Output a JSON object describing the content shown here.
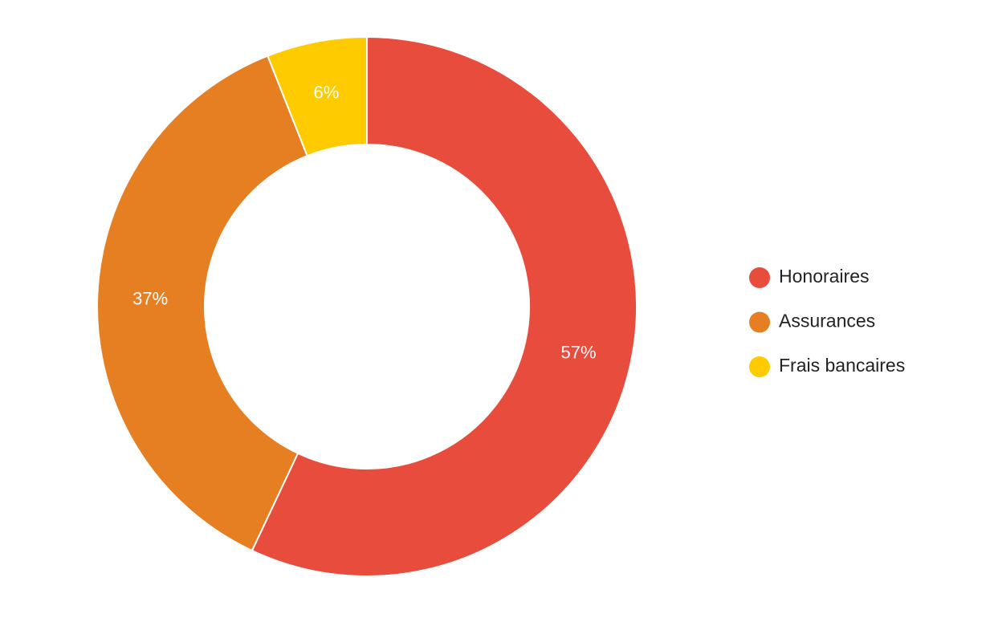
{
  "chart_data": {
    "type": "donut",
    "categories": [
      "Honoraires",
      "Assurances",
      "Frais bancaires"
    ],
    "values": [
      57,
      37,
      6
    ],
    "value_labels": [
      "57%",
      "37%",
      "6%"
    ],
    "colors": [
      "#e74c3c",
      "#e67e22",
      "#fdcb00"
    ],
    "legend": "right"
  }
}
